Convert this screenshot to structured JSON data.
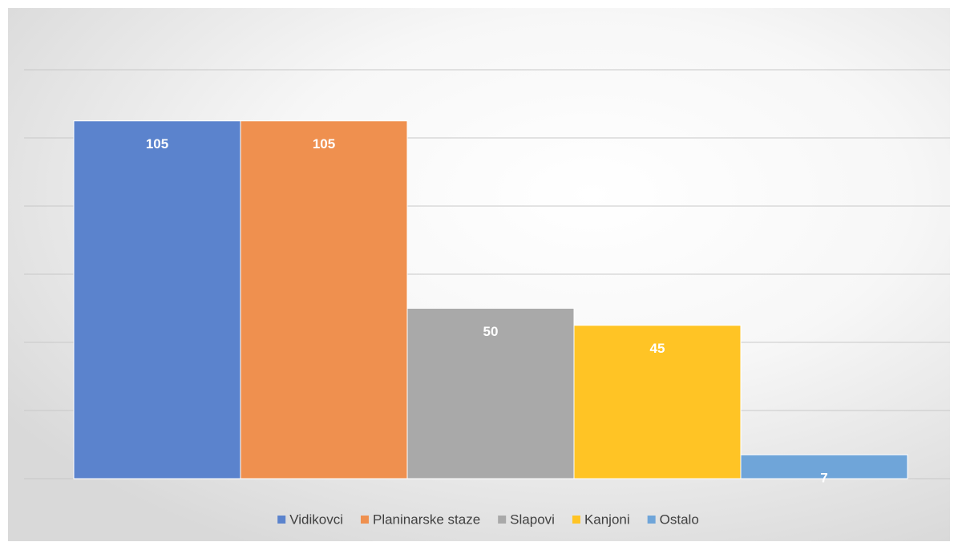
{
  "chart_data": {
    "type": "bar",
    "categories": [
      null
    ],
    "series": [
      {
        "name": "Vidikovci",
        "color": "#5b83cd",
        "values": [
          105
        ]
      },
      {
        "name": "Planinarske staze",
        "color": "#ef904f",
        "values": [
          105
        ]
      },
      {
        "name": "Slapovi",
        "color": "#a9a9a9",
        "values": [
          50
        ]
      },
      {
        "name": "Kanjoni",
        "color": "#ffc425",
        "values": [
          45
        ]
      },
      {
        "name": "Ostalo",
        "color": "#6fa5d9",
        "values": [
          7
        ]
      }
    ],
    "ylim": [
      0,
      120
    ],
    "yticks": [
      0,
      20,
      40,
      60,
      80,
      100,
      120
    ],
    "grid": true,
    "legend": "bottom"
  }
}
